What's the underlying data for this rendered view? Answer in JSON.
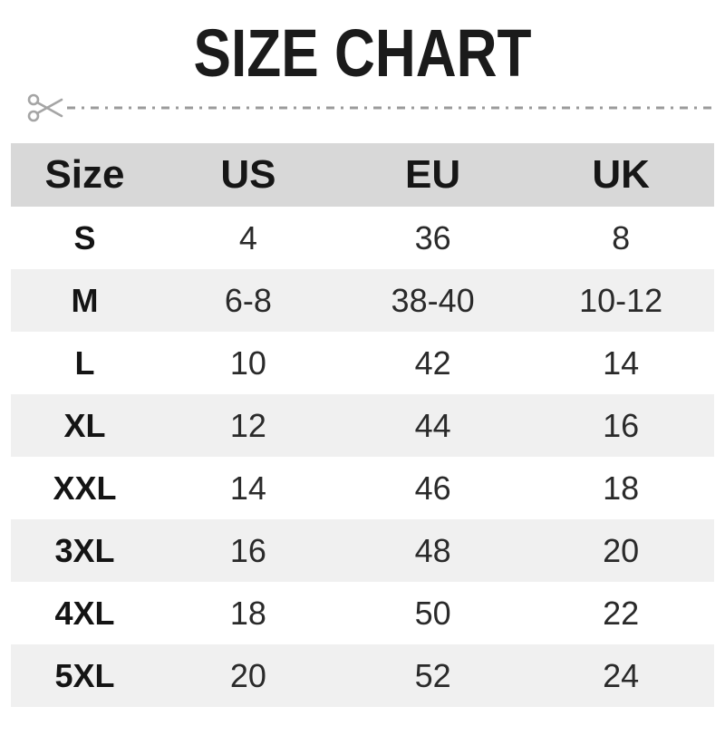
{
  "title": "SIZE CHART",
  "icons": {
    "cut": "scissors-icon"
  },
  "colors": {
    "header_bg": "#d8d8d8",
    "alt_row_bg": "#f0f0f0",
    "text": "#1b1b1b",
    "cut_line": "#9b9b9b",
    "scissors": "#a5a5a5"
  },
  "chart_data": {
    "type": "table",
    "title": "SIZE CHART",
    "columns": [
      "Size",
      "US",
      "EU",
      "UK"
    ],
    "rows": [
      [
        "S",
        "4",
        "36",
        "8"
      ],
      [
        "M",
        "6-8",
        "38-40",
        "10-12"
      ],
      [
        "L",
        "10",
        "42",
        "14"
      ],
      [
        "XL",
        "12",
        "44",
        "16"
      ],
      [
        "XXL",
        "14",
        "46",
        "18"
      ],
      [
        "3XL",
        "16",
        "48",
        "20"
      ],
      [
        "4XL",
        "18",
        "50",
        "22"
      ],
      [
        "5XL",
        "20",
        "52",
        "24"
      ]
    ],
    "layout": {
      "header_background": "#d8d8d8",
      "zebra_striping": true,
      "column_alignment": "center"
    }
  }
}
